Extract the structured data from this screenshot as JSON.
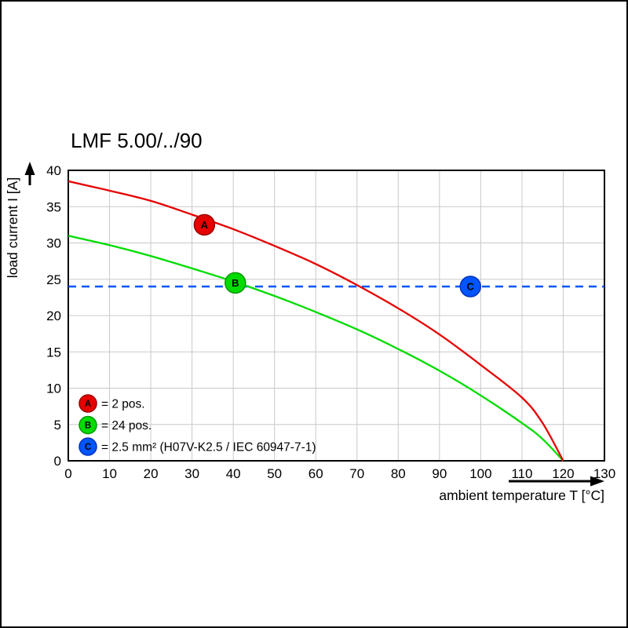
{
  "chart_data": {
    "type": "line",
    "title": "LMF 5.00/../90",
    "xlabel": "ambient temperature T [°C]",
    "ylabel": "load current I [A]",
    "xlim": [
      0,
      130
    ],
    "ylim": [
      0,
      40
    ],
    "xticks": [
      0,
      10,
      20,
      30,
      40,
      50,
      60,
      70,
      80,
      90,
      100,
      110,
      120,
      130
    ],
    "yticks": [
      0,
      5,
      10,
      15,
      20,
      25,
      30,
      35,
      40
    ],
    "grid": true,
    "background": "#ffffff",
    "grid_color": "#c9c9c9",
    "axis_color": "#000000",
    "legend_position": "lower left",
    "series": [
      {
        "name": "A",
        "label": "= 2 pos.",
        "color": "#e60000",
        "edge": "#9b0000",
        "style": "solid",
        "x": [
          0,
          10,
          20,
          30,
          40,
          50,
          60,
          70,
          80,
          90,
          100,
          110,
          115,
          120
        ],
        "y": [
          38.5,
          37.2,
          35.8,
          33.9,
          31.9,
          29.6,
          27.1,
          24.2,
          21.0,
          17.4,
          13.2,
          8.7,
          5.2,
          0
        ],
        "marker": {
          "x": 33,
          "y": 32.5
        }
      },
      {
        "name": "B",
        "label": "= 24 pos.",
        "color": "#00dc00",
        "edge": "#009600",
        "style": "solid",
        "x": [
          0,
          10,
          20,
          30,
          40,
          50,
          60,
          70,
          80,
          90,
          100,
          110,
          115,
          120
        ],
        "y": [
          31.0,
          29.7,
          28.2,
          26.5,
          24.7,
          22.7,
          20.5,
          18.1,
          15.4,
          12.4,
          9.0,
          5.2,
          3.0,
          0
        ],
        "marker": {
          "x": 40.5,
          "y": 24.5
        }
      },
      {
        "name": "C",
        "label": "= 2.5 mm² (H07V-K2.5 / IEC 60947-7-1)",
        "color": "#0055ff",
        "edge": "#0033bb",
        "style": "dashed",
        "x": [
          0,
          130
        ],
        "y": [
          24,
          24
        ],
        "marker": {
          "x": 97.5,
          "y": 24
        }
      }
    ]
  }
}
